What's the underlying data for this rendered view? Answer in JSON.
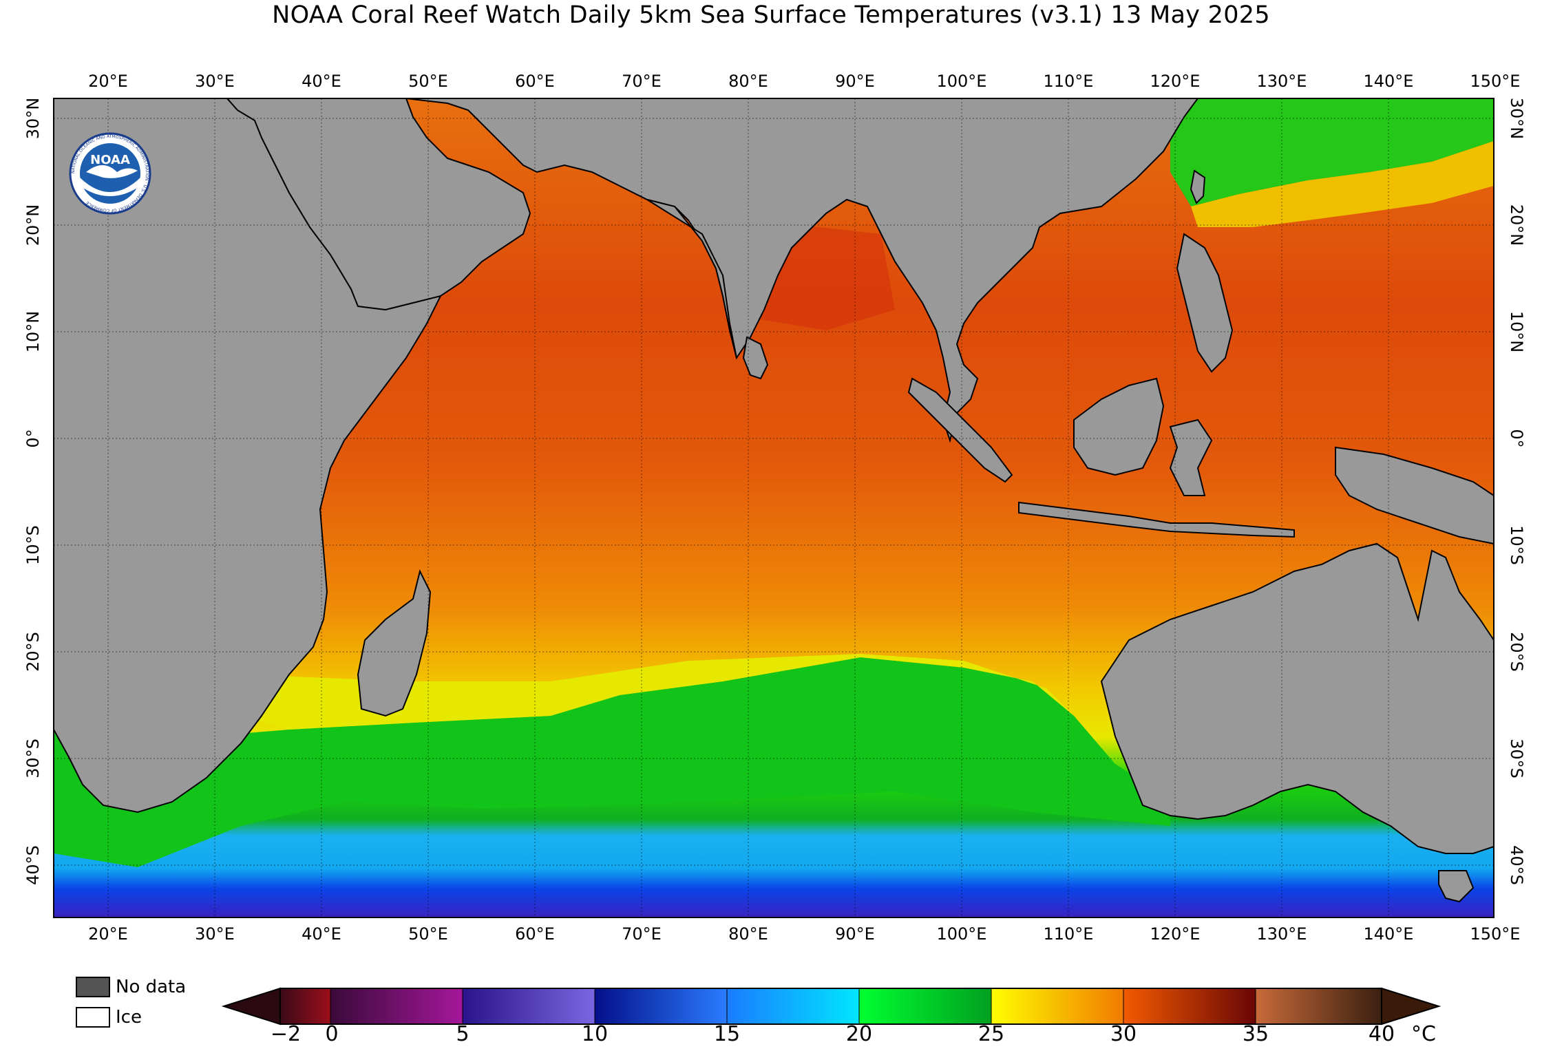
{
  "title": "NOAA Coral Reef Watch Daily 5km Sea Surface Temperatures  (v3.1)   13 May 2025",
  "logo": {
    "text": "NOAA",
    "ring_text": "NATIONAL OCEANIC AND ATMOSPHERIC ADMINISTRATION · U.S. DEPARTMENT OF COMMERCE"
  },
  "map": {
    "lon_labels": [
      "20°E",
      "30°E",
      "40°E",
      "50°E",
      "60°E",
      "70°E",
      "80°E",
      "90°E",
      "100°E",
      "110°E",
      "120°E",
      "130°E",
      "140°E",
      "150°E"
    ],
    "lat_labels": [
      "30°N",
      "20°N",
      "10°N",
      "0°",
      "10°S",
      "20°S",
      "30°S",
      "40°S"
    ],
    "colors": {
      "land": "#999999",
      "ocean_warm": "#e4620d",
      "ocean_hot": "#d83a08",
      "ocean_yellow": "#e8e000",
      "ocean_green": "#1ecf0a",
      "ocean_cyan": "#19b6f5",
      "ocean_blue": "#0d3fe0",
      "ocean_deep": "#4a2fc8"
    }
  },
  "legend": {
    "no_data": "No data",
    "ice": "Ice",
    "no_data_color": "#555555",
    "ice_color": "#ffffff"
  },
  "colorbar": {
    "ticks": [
      "−2",
      "0",
      "5",
      "10",
      "15",
      "20",
      "25",
      "30",
      "35",
      "40"
    ],
    "unit": "°C",
    "segments": [
      {
        "from": "#3a0a18",
        "to": "#9c0f1a"
      },
      {
        "from": "#3a0a3a",
        "to": "#a5179a"
      },
      {
        "from": "#2a148c",
        "to": "#7a66e0"
      },
      {
        "from": "#05108a",
        "to": "#2a7cff"
      },
      {
        "from": "#1a7cff",
        "to": "#00e6ff"
      },
      {
        "from": "#00ff30",
        "to": "#00a020"
      },
      {
        "from": "#ffff00",
        "to": "#f07a00"
      },
      {
        "from": "#f25a00",
        "to": "#6a0606"
      },
      {
        "from": "#c86a3a",
        "to": "#3a2010"
      }
    ]
  }
}
